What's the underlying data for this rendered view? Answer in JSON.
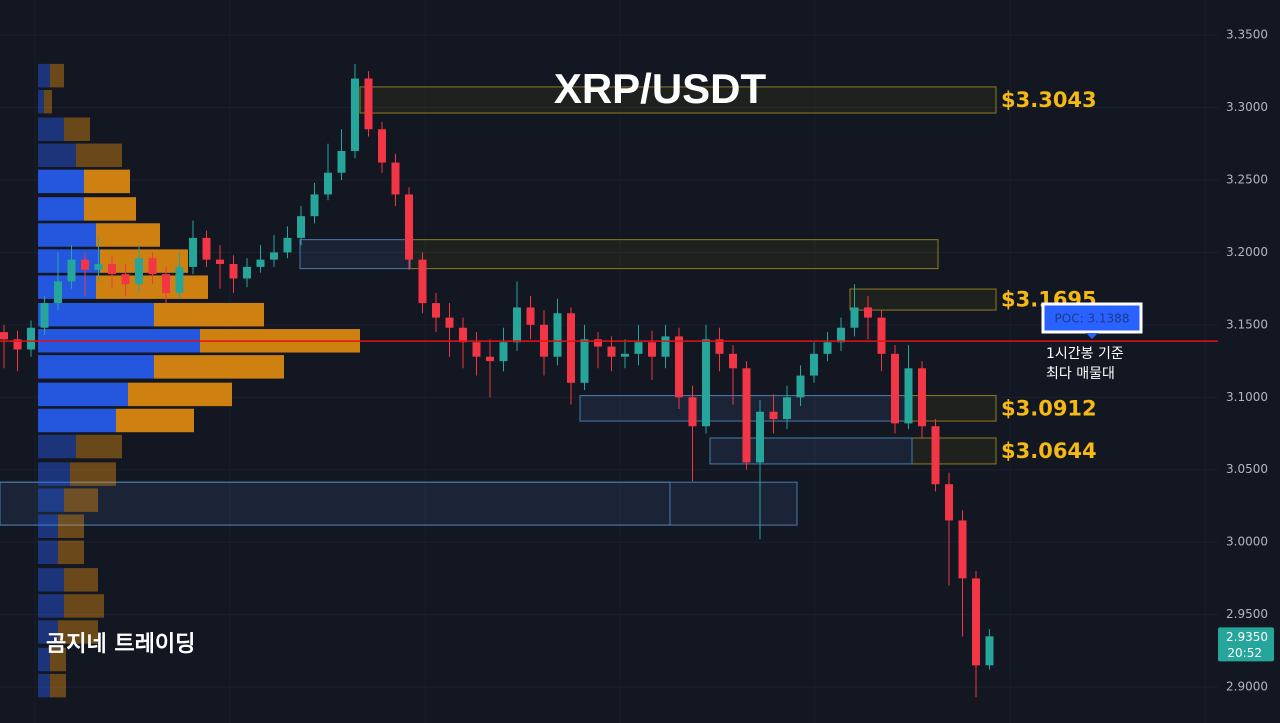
{
  "chart_data": {
    "type": "candlestick",
    "title": "XRP/USDT",
    "watermark": "곰지네 트레이딩",
    "up_color": "#26a69a",
    "down_color": "#f23645",
    "open": [
      3.145,
      3.14,
      3.133,
      3.148,
      3.165,
      3.18,
      3.195,
      3.188,
      3.192,
      3.185,
      3.178,
      3.196,
      3.185,
      3.172,
      3.19,
      3.21,
      3.195,
      3.192,
      3.182,
      3.19,
      3.195,
      3.2,
      3.21,
      3.225,
      3.24,
      3.255,
      3.27,
      3.32,
      3.285,
      3.262,
      3.24,
      3.195,
      3.165,
      3.155,
      3.148,
      3.138,
      3.128,
      3.125,
      3.138,
      3.162,
      3.15,
      3.128,
      3.158,
      3.11,
      3.14,
      3.135,
      3.128,
      3.13,
      3.138,
      3.128,
      3.142,
      3.1,
      3.08,
      3.14,
      3.13,
      3.12,
      3.055,
      3.09,
      3.085,
      3.1,
      3.115,
      3.13,
      3.138,
      3.148,
      3.162,
      3.155,
      3.13,
      3.082,
      3.12,
      3.08,
      3.04,
      3.015,
      2.975,
      2.915
    ],
    "high": [
      3.15,
      3.146,
      3.153,
      3.17,
      3.2,
      3.205,
      3.2,
      3.21,
      3.198,
      3.192,
      3.205,
      3.2,
      3.19,
      3.2,
      3.222,
      3.215,
      3.205,
      3.198,
      3.196,
      3.205,
      3.212,
      3.218,
      3.232,
      3.248,
      3.275,
      3.285,
      3.33,
      3.325,
      3.29,
      3.268,
      3.245,
      3.2,
      3.172,
      3.165,
      3.155,
      3.145,
      3.14,
      3.148,
      3.18,
      3.17,
      3.16,
      3.168,
      3.162,
      3.15,
      3.145,
      3.142,
      3.14,
      3.15,
      3.146,
      3.15,
      3.148,
      3.108,
      3.15,
      3.148,
      3.136,
      3.125,
      3.098,
      3.102,
      3.108,
      3.122,
      3.138,
      3.145,
      3.155,
      3.178,
      3.17,
      3.16,
      3.136,
      3.136,
      3.125,
      3.085,
      3.048,
      3.022,
      2.98,
      2.94
    ],
    "low": [
      3.12,
      3.118,
      3.128,
      3.143,
      3.16,
      3.175,
      3.17,
      3.18,
      3.175,
      3.17,
      3.172,
      3.178,
      3.165,
      3.168,
      3.185,
      3.19,
      3.175,
      3.172,
      3.176,
      3.186,
      3.19,
      3.196,
      3.205,
      3.22,
      3.236,
      3.25,
      3.265,
      3.28,
      3.255,
      3.232,
      3.188,
      3.158,
      3.145,
      3.128,
      3.12,
      3.115,
      3.1,
      3.118,
      3.132,
      3.14,
      3.115,
      3.122,
      3.095,
      3.105,
      3.12,
      3.118,
      3.12,
      3.122,
      3.112,
      3.12,
      3.092,
      3.042,
      3.075,
      3.118,
      3.095,
      3.05,
      3.002,
      3.075,
      3.078,
      3.094,
      3.11,
      3.125,
      3.132,
      3.142,
      3.14,
      3.118,
      3.075,
      3.078,
      3.072,
      3.035,
      2.97,
      2.935,
      2.893,
      2.912
    ],
    "close": [
      3.14,
      3.133,
      3.148,
      3.165,
      3.18,
      3.195,
      3.188,
      3.192,
      3.185,
      3.178,
      3.196,
      3.185,
      3.172,
      3.19,
      3.21,
      3.195,
      3.192,
      3.182,
      3.19,
      3.195,
      3.2,
      3.21,
      3.225,
      3.24,
      3.255,
      3.27,
      3.32,
      3.285,
      3.262,
      3.24,
      3.195,
      3.165,
      3.155,
      3.148,
      3.138,
      3.128,
      3.125,
      3.138,
      3.162,
      3.15,
      3.128,
      3.158,
      3.11,
      3.14,
      3.135,
      3.128,
      3.13,
      3.138,
      3.128,
      3.142,
      3.1,
      3.08,
      3.14,
      3.13,
      3.12,
      3.055,
      3.09,
      3.085,
      3.1,
      3.115,
      3.13,
      3.138,
      3.148,
      3.162,
      3.155,
      3.13,
      3.082,
      3.12,
      3.08,
      3.04,
      3.015,
      2.975,
      2.915,
      2.935
    ],
    "ylim": [
      2.8752,
      3.3742
    ],
    "yticks": [
      {
        "value": 3.35,
        "label": "3.3500"
      },
      {
        "value": 3.3,
        "label": "3.3000"
      },
      {
        "value": 3.25,
        "label": "3.2500"
      },
      {
        "value": 3.2,
        "label": "3.2000"
      },
      {
        "value": 3.15,
        "label": "3.1500"
      },
      {
        "value": 3.1,
        "label": "3.1000"
      },
      {
        "value": 3.05,
        "label": "3.0500"
      },
      {
        "value": 3.0,
        "label": "3.0000"
      },
      {
        "value": 2.95,
        "label": "2.9500"
      },
      {
        "value": 2.9,
        "label": "2.9000"
      }
    ],
    "volume_profile": {
      "buy_color": "#2962ff",
      "sell_color": "#f0930e",
      "levels": [
        3.322,
        3.304,
        3.285,
        3.267,
        3.249,
        3.23,
        3.212,
        3.194,
        3.176,
        3.157,
        3.139,
        3.121,
        3.102,
        3.084,
        3.066,
        3.047,
        3.029,
        3.011,
        2.993,
        2.974,
        2.956,
        2.938,
        2.919,
        2.901
      ],
      "buy": [
        12,
        6,
        26,
        38,
        46,
        46,
        58,
        62,
        58,
        116,
        162,
        116,
        90,
        78,
        38,
        32,
        26,
        20,
        20,
        26,
        26,
        20,
        12,
        12
      ],
      "sell": [
        14,
        8,
        26,
        46,
        46,
        52,
        64,
        88,
        112,
        110,
        160,
        130,
        104,
        78,
        46,
        46,
        34,
        26,
        26,
        34,
        40,
        40,
        16,
        16
      ]
    },
    "zones": [
      {
        "top": 3.3142,
        "bottom": 3.2962,
        "style": "yellow",
        "label": "$3.3043"
      },
      {
        "top": 3.2088,
        "bottom": 3.1888,
        "style": "yellow"
      },
      {
        "top": 3.2088,
        "bottom": 3.1888,
        "style": "blue"
      },
      {
        "top": 3.1747,
        "bottom": 3.1602,
        "style": "yellow",
        "label": "$3.1695"
      },
      {
        "top": 3.1012,
        "bottom": 3.0836,
        "style": "yellow",
        "label": "$3.0912"
      },
      {
        "top": 3.1012,
        "bottom": 3.0836,
        "style": "blue"
      },
      {
        "top": 3.0719,
        "bottom": 3.054,
        "style": "yellow",
        "label": "$3.0644"
      },
      {
        "top": 3.0719,
        "bottom": 3.054,
        "style": "blue"
      },
      {
        "top": 3.0414,
        "bottom": 3.0118,
        "style": "blue"
      }
    ],
    "poc": {
      "value": 3.1388,
      "label": "POC: 3.1388",
      "color": "#e0141a",
      "note": [
        "1시간봉 기준",
        "최다 매물대"
      ]
    },
    "last_price": {
      "value": 2.935,
      "label": "2.9350",
      "time": "20:52"
    }
  }
}
